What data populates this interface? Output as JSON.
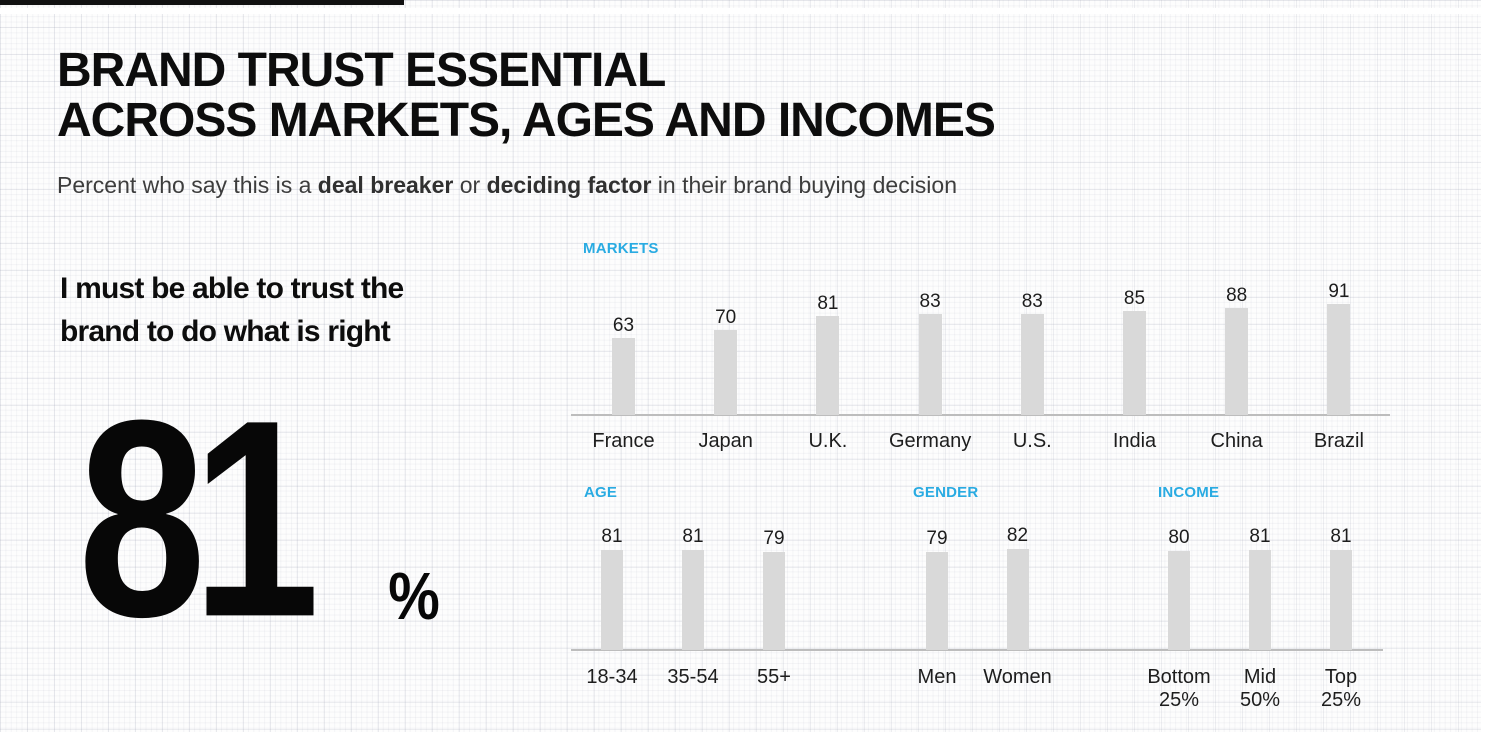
{
  "page": {
    "accent_color": "#29ABE2",
    "bar_color": "#D9D9D9",
    "highlight_color": "#A9C9E3",
    "text_color": "#0d0d0d"
  },
  "header": {
    "title_line1": "BRAND TRUST ESSENTIAL",
    "title_line2": "ACROSS MARKETS, AGES AND INCOMES",
    "subtitle": {
      "pre": "Percent who say this is a ",
      "bold1": "deal breaker",
      "mid": " or ",
      "bold2": "deciding factor",
      "post": " in their brand buying decision"
    }
  },
  "statement": {
    "line1": "I must be able to trust the",
    "line2": "brand to do what is right",
    "big_value": "81",
    "percent_sign": "%"
  },
  "chart_data": [
    {
      "type": "bar",
      "title": "MARKETS",
      "categories": [
        "France",
        "Japan",
        "U.K.",
        "Germany",
        "U.S.",
        "India",
        "China",
        "Brazil"
      ],
      "values": [
        63,
        70,
        81,
        83,
        83,
        85,
        88,
        91
      ],
      "ylim": [
        0,
        100
      ],
      "grid": false,
      "value_labels": true,
      "legend": "none"
    },
    {
      "type": "bar",
      "title": "AGE",
      "categories": [
        "18-34",
        "35-54",
        "55+"
      ],
      "values": [
        81,
        81,
        79
      ],
      "ylim": [
        0,
        100
      ],
      "grid": false,
      "value_labels": true,
      "legend": "none"
    },
    {
      "type": "bar",
      "title": "GENDER",
      "categories": [
        "Men",
        "Women"
      ],
      "values": [
        79,
        82
      ],
      "ylim": [
        0,
        100
      ],
      "grid": false,
      "value_labels": true,
      "legend": "none"
    },
    {
      "type": "bar",
      "title": "INCOME",
      "categories": [
        "Bottom\n25%",
        "Mid\n50%",
        "Top\n25%"
      ],
      "values": [
        80,
        81,
        81
      ],
      "ylim": [
        0,
        100
      ],
      "grid": false,
      "value_labels": true,
      "legend": "none"
    }
  ]
}
